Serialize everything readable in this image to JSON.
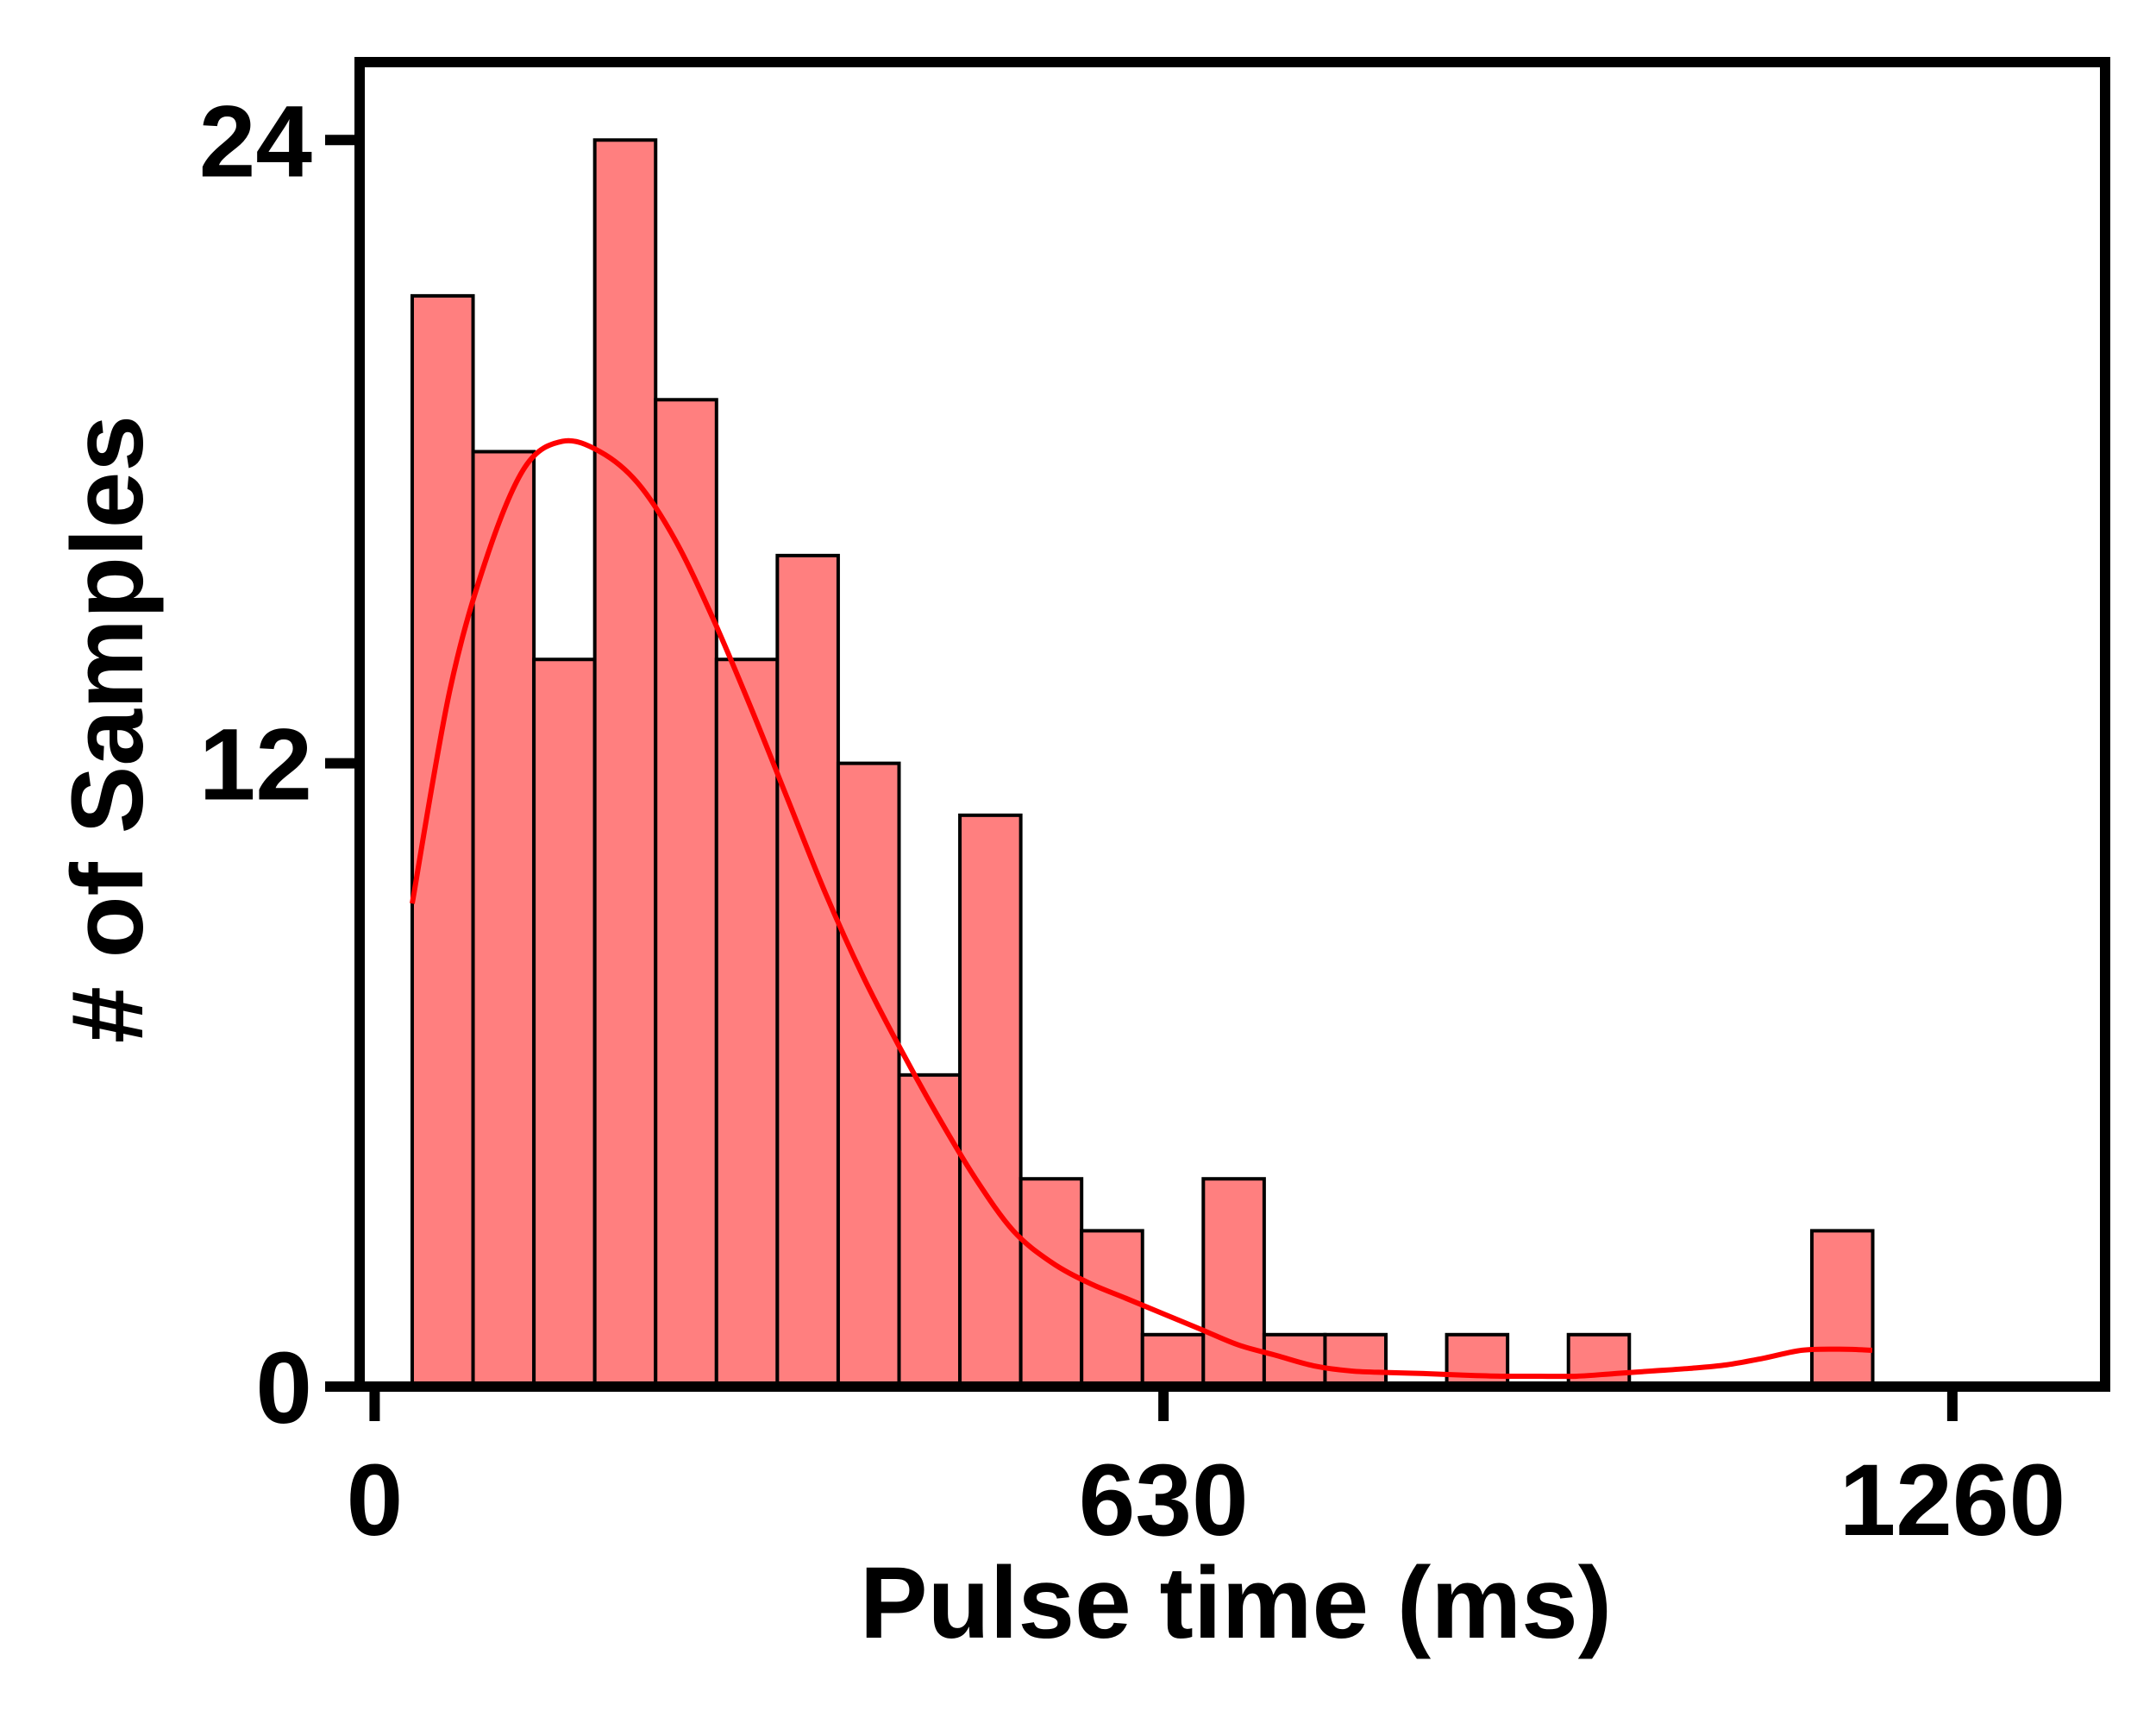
{
  "chart_data": {
    "type": "bar",
    "subtype": "histogram-with-density-curve",
    "xlabel": "Pulse time (ms)",
    "ylabel": "# of Samples",
    "xlim": [
      -12,
      1382
    ],
    "ylim": [
      0,
      25.5
    ],
    "x_ticks": [
      {
        "value": 0,
        "label": "0"
      },
      {
        "value": 630,
        "label": "630"
      },
      {
        "value": 1260,
        "label": "1260"
      }
    ],
    "y_ticks": [
      {
        "value": 0,
        "label": "0"
      },
      {
        "value": 12,
        "label": "12"
      },
      {
        "value": 24,
        "label": "24"
      }
    ],
    "bin_start": 30,
    "bin_width": 48.6,
    "counts": [
      21,
      18,
      14,
      24,
      19,
      14,
      16,
      12,
      6,
      11,
      4,
      3,
      1,
      4,
      1,
      1,
      0,
      1,
      0,
      1,
      0,
      0,
      0,
      3
    ],
    "bar_color": "#ff7f7f",
    "bar_edge_color": "#000000",
    "curve_color": "#ff0000",
    "density_curve": {
      "x": [
        30,
        60,
        90,
        120,
        150,
        180,
        210,
        240,
        270,
        300,
        330,
        360,
        390,
        420,
        450,
        480,
        510,
        540,
        570,
        600,
        630,
        660,
        690,
        720,
        750,
        780,
        810,
        840,
        870,
        900,
        930,
        960,
        990,
        1020,
        1050,
        1080,
        1110,
        1140,
        1170,
        1196
      ],
      "y": [
        9.3,
        13.4,
        16.0,
        17.7,
        18.2,
        18.0,
        17.4,
        16.3,
        14.8,
        13.1,
        11.3,
        9.5,
        7.9,
        6.5,
        5.2,
        4.0,
        3.0,
        2.4,
        2.0,
        1.7,
        1.4,
        1.1,
        0.8,
        0.6,
        0.4,
        0.3,
        0.27,
        0.25,
        0.22,
        0.2,
        0.2,
        0.2,
        0.25,
        0.3,
        0.35,
        0.42,
        0.55,
        0.7,
        0.72,
        0.7
      ]
    }
  }
}
